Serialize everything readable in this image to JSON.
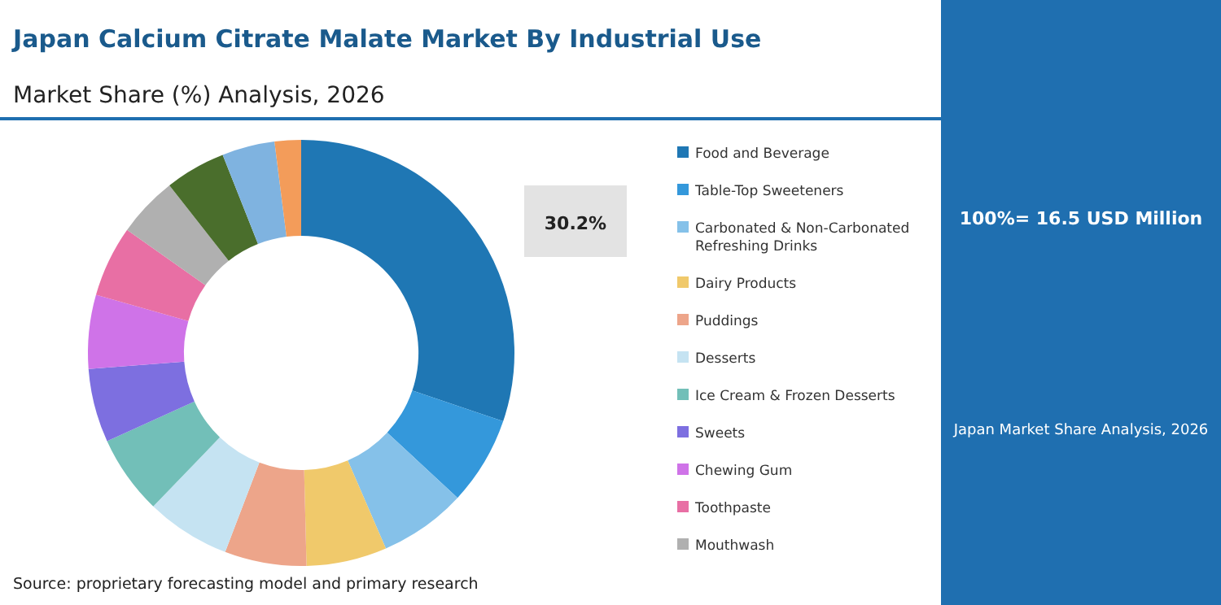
{
  "chart_data": {
    "type": "donut",
    "title": "Japan Calcium Citrate Malate Market By Industrial Use",
    "subtitle": "Market Share (%) Analysis, 2026",
    "categories": [
      "Food and Beverage",
      "Table-Top Sweeteners",
      "Carbonated & Non-Carbonated Refreshing Drinks",
      "Dairy Products",
      "Puddings",
      "Desserts",
      "Ice Cream & Frozen Desserts",
      "Sweets",
      "Chewing Gum",
      "Toothpaste",
      "Mouthwash",
      null,
      null,
      null
    ],
    "values": [
      30.2,
      6.7,
      6.6,
      6.1,
      6.2,
      6.4,
      6.0,
      5.6,
      5.6,
      5.4,
      4.6,
      4.6,
      4.0,
      2.0
    ],
    "colors": [
      "#1f77b4",
      "#3498db",
      "#85c1e9",
      "#f0c96b",
      "#eda58a",
      "#c5e3f2",
      "#72bfb8",
      "#7d6fe0",
      "#cf73e8",
      "#e86fa4",
      "#b0b0b0",
      "#4a6e2c",
      "#7fb3e0",
      "#f39c5a"
    ],
    "value_labels": [
      "30.2%",
      null,
      null,
      null,
      null,
      null,
      null,
      null,
      null,
      null,
      null,
      null,
      null,
      null
    ],
    "legend": "right",
    "annotations": [
      "100%= 16.5 USD Million",
      "Japan Market Share Analysis, 2026",
      "Source: proprietary forecasting model and primary research"
    ]
  }
}
